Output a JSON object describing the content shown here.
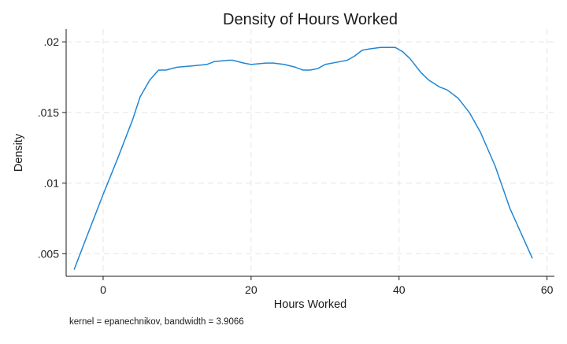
{
  "chart_data": {
    "type": "line",
    "title": "Density of Hours Worked",
    "xlabel": "Hours Worked",
    "ylabel": "Density",
    "note": "kernel = epanechnikov, bandwidth = 3.9066",
    "xlim": [
      -5,
      61
    ],
    "ylim": [
      0.0034,
      0.0209
    ],
    "xticks": [
      0,
      20,
      40,
      60
    ],
    "xtick_labels": [
      "0",
      "20",
      "40",
      "60"
    ],
    "yticks": [
      0.005,
      0.01,
      0.015,
      0.02
    ],
    "ytick_labels": [
      ".005",
      ".01",
      ".015",
      ".02"
    ],
    "grid": true,
    "line_color": "#1f86d6",
    "series": [
      {
        "x": [
          -3.9,
          -2,
          0,
          2,
          4,
          5,
          6.3,
          7.5,
          8.5,
          10,
          12,
          14,
          15,
          17,
          17.5,
          19,
          20,
          22,
          23,
          24.5,
          26,
          27,
          28,
          29,
          30,
          32,
          33,
          34,
          35,
          36,
          37.5,
          38.5,
          39.5,
          40.5,
          41.5,
          43,
          44,
          45.5,
          46.5,
          48,
          49.5,
          51,
          53,
          55,
          58
        ],
        "y": [
          0.0039,
          0.0065,
          0.0092,
          0.0118,
          0.0145,
          0.0161,
          0.0173,
          0.018,
          0.018,
          0.0182,
          0.0183,
          0.0184,
          0.0186,
          0.0187,
          0.0187,
          0.0185,
          0.0184,
          0.0185,
          0.0185,
          0.0184,
          0.0182,
          0.018,
          0.018,
          0.0181,
          0.0184,
          0.0186,
          0.0187,
          0.019,
          0.0194,
          0.0195,
          0.0196,
          0.0196,
          0.0196,
          0.0193,
          0.0188,
          0.0178,
          0.0173,
          0.0168,
          0.0166,
          0.016,
          0.015,
          0.0136,
          0.0112,
          0.0082,
          0.0047
        ]
      }
    ]
  }
}
